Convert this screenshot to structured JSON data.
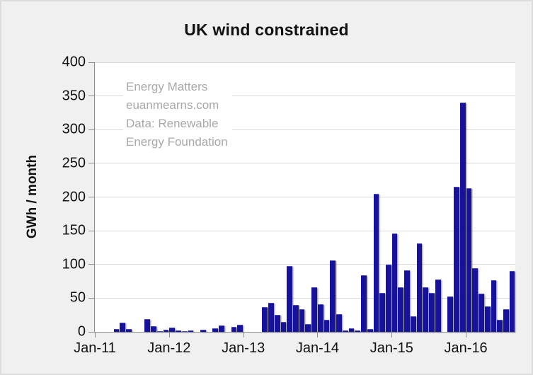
{
  "title": "UK wind constrained",
  "watermark": {
    "lines": [
      "Energy Matters",
      "euanmearns.com",
      "Data: Renewable",
      "Energy Foundation"
    ]
  },
  "y_axis": {
    "label": "GWh / month",
    "ticks": [
      0,
      50,
      100,
      150,
      200,
      250,
      300,
      350,
      400
    ]
  },
  "x_axis": {
    "tick_labels": [
      "Jan-11",
      "Jan-12",
      "Jan-13",
      "Jan-14",
      "Jan-15",
      "Jan-16"
    ],
    "tick_month_indices": [
      0,
      12,
      24,
      36,
      48,
      60
    ]
  },
  "colors": {
    "bar": "#16129b",
    "gridline": "#d9d9d9",
    "axis": "#8c8c8c",
    "background": "#f0f0f0",
    "plot_background": "#ffffff",
    "watermark_text": "#a8a8a8"
  },
  "chart_data": {
    "type": "bar",
    "title": "UK wind constrained",
    "xlabel": "",
    "ylabel": "GWh / month",
    "ylim": [
      0,
      400
    ],
    "grid": "horizontal",
    "x": [
      "Jan-11",
      "Feb-11",
      "Mar-11",
      "Apr-11",
      "May-11",
      "Jun-11",
      "Jul-11",
      "Aug-11",
      "Sep-11",
      "Oct-11",
      "Nov-11",
      "Dec-11",
      "Jan-12",
      "Feb-12",
      "Mar-12",
      "Apr-12",
      "May-12",
      "Jun-12",
      "Jul-12",
      "Aug-12",
      "Sep-12",
      "Oct-12",
      "Nov-12",
      "Dec-12",
      "Jan-13",
      "Feb-13",
      "Mar-13",
      "Apr-13",
      "May-13",
      "Jun-13",
      "Jul-13",
      "Aug-13",
      "Sep-13",
      "Oct-13",
      "Nov-13",
      "Dec-13",
      "Jan-14",
      "Feb-14",
      "Mar-14",
      "Apr-14",
      "May-14",
      "Jun-14",
      "Jul-14",
      "Aug-14",
      "Sep-14",
      "Oct-14",
      "Nov-14",
      "Dec-14",
      "Jan-15",
      "Feb-15",
      "Mar-15",
      "Apr-15",
      "May-15",
      "Jun-15",
      "Jul-15",
      "Aug-15",
      "Sep-15",
      "Oct-15",
      "Nov-15",
      "Dec-15",
      "Jan-16",
      "Feb-16",
      "Mar-16",
      "Apr-16",
      "May-16",
      "Jun-16",
      "Jul-16",
      "Aug-16"
    ],
    "values": [
      0,
      0,
      0,
      4,
      14,
      4,
      0,
      0,
      19,
      8,
      1,
      3,
      6,
      2,
      1,
      2,
      0,
      3,
      0,
      5,
      9,
      0,
      7,
      10,
      0,
      0,
      0,
      37,
      43,
      25,
      15,
      98,
      40,
      34,
      12,
      66,
      41,
      18,
      106,
      26,
      2,
      5,
      2,
      84,
      4,
      205,
      58,
      100,
      146,
      66,
      91,
      23,
      131,
      66,
      58,
      78,
      0,
      53,
      215,
      340,
      213,
      95,
      57,
      38,
      77,
      18,
      34,
      90
    ]
  }
}
